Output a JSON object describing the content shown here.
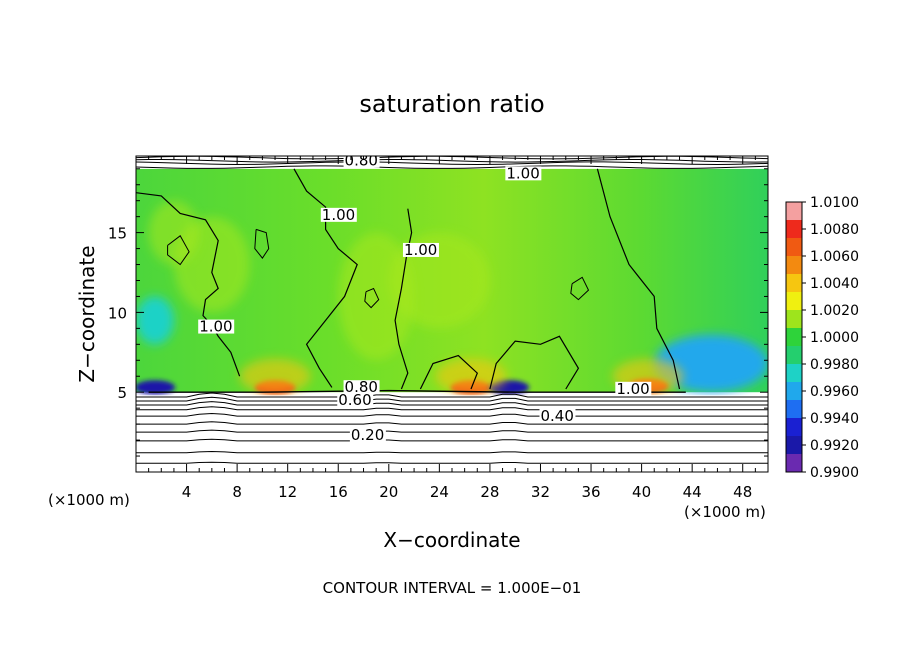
{
  "chart_data": {
    "type": "heatmap",
    "title": "saturation ratio",
    "xlabel": "X−coordinate",
    "ylabel": "Z−coordinate",
    "x_unit_left": "(×1000 m)",
    "x_unit_right": "(×1000 m)",
    "xlim": [
      0,
      50
    ],
    "ylim": [
      0,
      19.8
    ],
    "x_ticks": [
      4,
      8,
      12,
      16,
      20,
      24,
      28,
      32,
      36,
      40,
      44,
      48
    ],
    "y_ticks": [
      5,
      10,
      15
    ],
    "footer": "CONTOUR INTERVAL = 1.000E−01",
    "colorbar": {
      "min": 0.99,
      "max": 1.01,
      "labels": [
        "1.0100",
        "1.0080",
        "1.0060",
        "1.0040",
        "1.0020",
        "1.0000",
        "0.9980",
        "0.9960",
        "0.9940",
        "0.9920",
        "0.9900"
      ],
      "colors": [
        "#f4a0a0",
        "#ee2a1c",
        "#f05a12",
        "#f38a10",
        "#f6c610",
        "#f0f010",
        "#9ee41c",
        "#2ed33a",
        "#24cf6e",
        "#1ed2c6",
        "#20a8ec",
        "#1e6ef2",
        "#1a20d2",
        "#1a18a8",
        "#6a2ab0"
      ]
    },
    "contour_interval": 0.1,
    "contour_labels": [
      {
        "text": "0.80",
        "x": 16.5,
        "z": 19.2
      },
      {
        "text": "1.00",
        "x": 29.3,
        "z": 18.4
      },
      {
        "text": "1.00",
        "x": 14.7,
        "z": 15.8
      },
      {
        "text": "1.00",
        "x": 21.2,
        "z": 13.6
      },
      {
        "text": "1.00",
        "x": 5.0,
        "z": 8.8
      },
      {
        "text": "1.00",
        "x": 38.0,
        "z": 4.9
      },
      {
        "text": "0.80",
        "x": 16.5,
        "z": 5.0
      },
      {
        "text": "0.60",
        "x": 16.0,
        "z": 4.2
      },
      {
        "text": "0.40",
        "x": 32.0,
        "z": 3.2
      },
      {
        "text": "0.20",
        "x": 17.0,
        "z": 2.0
      }
    ],
    "field_regions": [
      {
        "value": 1.0005,
        "desc": "bulk cloud layer",
        "x": [
          0,
          50
        ],
        "z": [
          5.0,
          19.0
        ]
      },
      {
        "value": 0.9965,
        "desc": "right lower blue area",
        "x": 45.5,
        "z": 6.8,
        "rx": 4.5,
        "rz": 1.8
      },
      {
        "value": 0.9975,
        "desc": "left cyan area",
        "x": 1.5,
        "z": 9.5,
        "rx": 1.5,
        "rz": 1.5
      },
      {
        "value": 1.0075,
        "desc": "red maximum",
        "x": 11.0,
        "z": 5.3
      },
      {
        "value": 1.0075,
        "desc": "red maximum",
        "x": 26.5,
        "z": 5.3
      },
      {
        "value": 1.0075,
        "desc": "red maximum",
        "x": 40.5,
        "z": 5.4
      },
      {
        "value": 0.9915,
        "desc": "dark blue minimum",
        "x": 1.5,
        "z": 5.3
      },
      {
        "value": 0.9915,
        "desc": "dark blue minimum",
        "x": 29.5,
        "z": 5.3
      }
    ],
    "grid": false
  }
}
